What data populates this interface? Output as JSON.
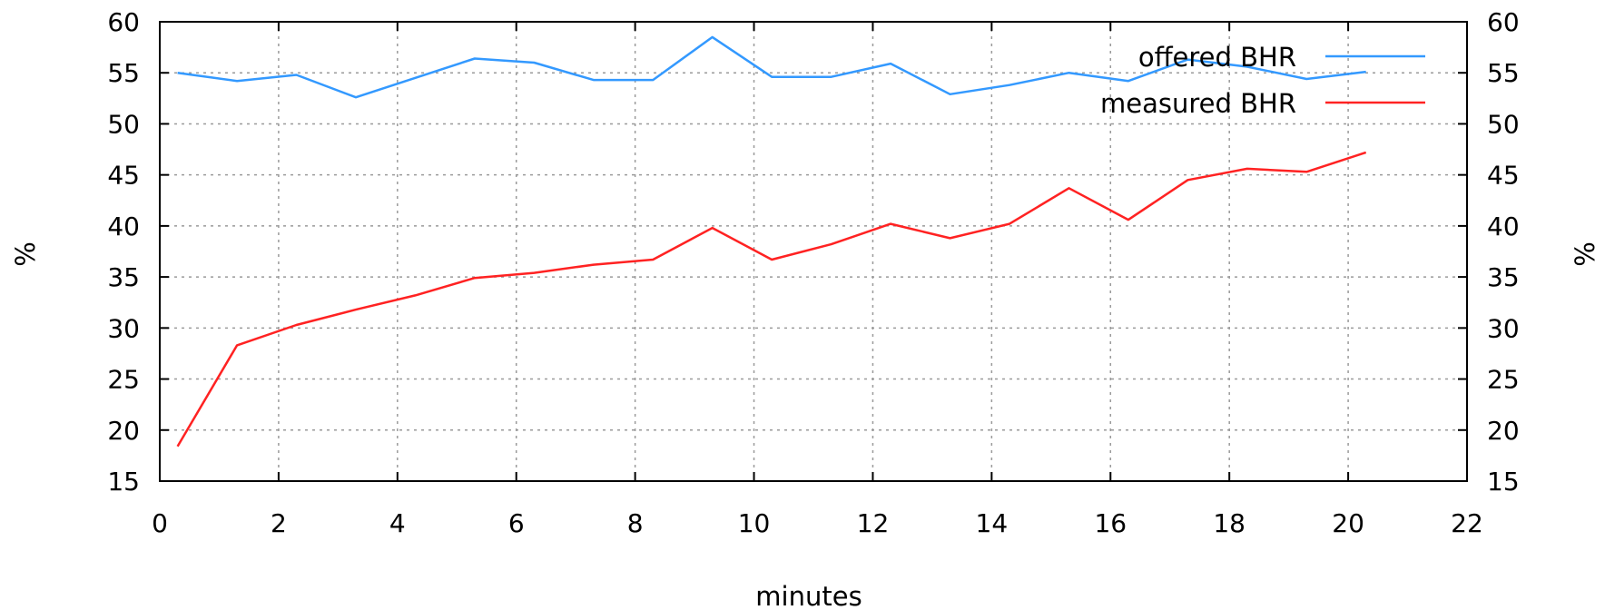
{
  "chart_data": {
    "type": "line",
    "title": "",
    "xlabel": "minutes",
    "ylabel": "%",
    "y2label": "%",
    "xlim": [
      0,
      22
    ],
    "ylim": [
      15,
      60
    ],
    "xticks": [
      "0",
      "2",
      "4",
      "6",
      "8",
      "10",
      "12",
      "14",
      "16",
      "18",
      "20",
      "22"
    ],
    "yticks": [
      "15",
      "20",
      "25",
      "30",
      "35",
      "40",
      "45",
      "50",
      "55",
      "60"
    ],
    "grid": true,
    "legend_position": "top-right",
    "series": [
      {
        "name": "offered BHR",
        "color": "#3399ff",
        "x": [
          0.3,
          1.3,
          2.3,
          3.3,
          4.3,
          5.3,
          6.3,
          7.3,
          8.3,
          9.3,
          10.3,
          11.3,
          12.3,
          13.3,
          14.3,
          15.3,
          16.3,
          17.3,
          18.3,
          19.3,
          20.3
        ],
        "y": [
          55.0,
          54.2,
          54.8,
          52.6,
          54.5,
          56.4,
          56.0,
          54.3,
          54.3,
          58.5,
          54.6,
          54.6,
          55.9,
          52.9,
          53.8,
          55.0,
          54.2,
          56.3,
          55.6,
          54.4,
          55.1
        ]
      },
      {
        "name": "measured BHR",
        "color": "#ff2222",
        "x": [
          0.3,
          1.3,
          2.3,
          3.3,
          4.3,
          5.3,
          6.3,
          7.3,
          8.3,
          9.3,
          10.3,
          11.3,
          12.3,
          13.3,
          14.3,
          15.3,
          16.3,
          17.3,
          18.3,
          19.3,
          20.3
        ],
        "y": [
          18.4,
          28.3,
          30.3,
          31.8,
          33.2,
          34.9,
          35.4,
          36.2,
          36.7,
          39.8,
          36.7,
          38.2,
          40.2,
          38.8,
          40.2,
          43.7,
          40.6,
          44.5,
          45.6,
          45.3,
          47.2
        ]
      }
    ]
  }
}
